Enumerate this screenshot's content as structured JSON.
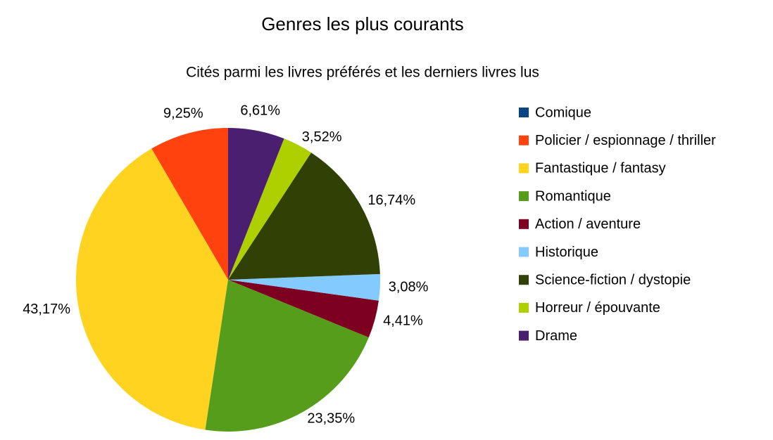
{
  "chart_data": {
    "type": "pie",
    "title": "Genres les plus courants",
    "subtitle": "Cités parmi les livres préférés et les derniers livres lus",
    "categories": [
      "Comique",
      "Policier / espionnage / thriller",
      "Fantastique / fantasy",
      "Romantique",
      "Action / aventure",
      "Historique",
      "Science-fiction / dystopie",
      "Horreur / épouvante",
      "Drame"
    ],
    "values": [
      0,
      9.25,
      43.17,
      23.35,
      4.41,
      3.08,
      16.74,
      3.52,
      6.61
    ],
    "value_labels": [
      null,
      "9,25%",
      "43,17%",
      "23,35%",
      "4,41%",
      "3,08%",
      "16,74%",
      "3,52%",
      "6,61%"
    ],
    "colors": [
      "#004586",
      "#ff420e",
      "#ffd320",
      "#579d1c",
      "#7e0021",
      "#83caff",
      "#314004",
      "#aecf00",
      "#4b1f6f"
    ],
    "legend": "right"
  }
}
